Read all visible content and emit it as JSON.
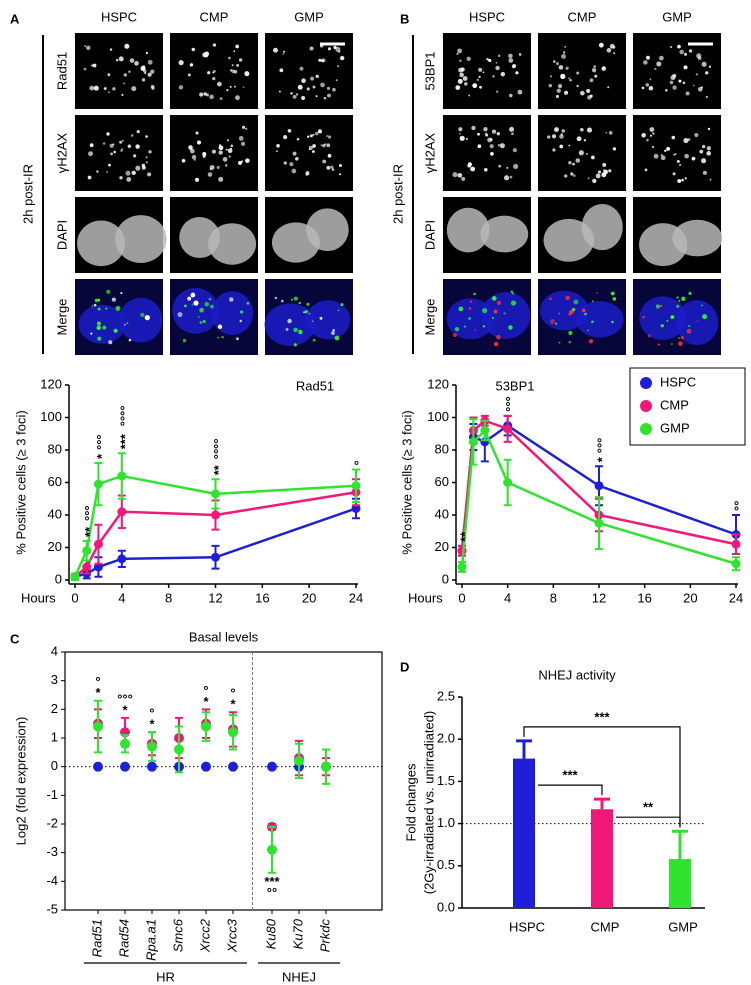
{
  "panels": {
    "A": {
      "label": "A",
      "columns": [
        "HSPC",
        "CMP",
        "GMP"
      ],
      "rows": [
        "Rad51",
        "γH2AX",
        "DAPI",
        "Merge"
      ],
      "side_label": "2h post-IR"
    },
    "B": {
      "label": "B",
      "columns": [
        "HSPC",
        "CMP",
        "GMP"
      ],
      "rows": [
        "53BP1",
        "γH2AX",
        "DAPI",
        "Merge"
      ],
      "side_label": "2h post-IR"
    },
    "C": {
      "label": "C"
    },
    "D": {
      "label": "D"
    }
  },
  "chart_data": [
    {
      "type": "line",
      "title": "Rad51",
      "y_label": "% Positive cells (≥ 3 foci)",
      "x_label": "Hours",
      "x": [
        0,
        1,
        2,
        4,
        12,
        24
      ],
      "xlim": [
        0,
        24
      ],
      "xticks": [
        0,
        4,
        8,
        12,
        16,
        20,
        24
      ],
      "ylim": [
        0,
        120
      ],
      "yticks": [
        0,
        20,
        40,
        60,
        80,
        100,
        120
      ],
      "series": [
        {
          "color": "#1f1fd8",
          "values": [
            2,
            4,
            8,
            13,
            14,
            44
          ],
          "errors": [
            2,
            3,
            6,
            5,
            7,
            6
          ]
        },
        {
          "color": "#f0197a",
          "values": [
            2,
            8,
            22,
            42,
            40,
            54
          ],
          "errors": [
            2,
            4,
            12,
            10,
            9,
            8
          ]
        },
        {
          "color": "#2fe32f",
          "values": [
            2,
            18,
            59,
            64,
            53,
            58
          ],
          "errors": [
            2,
            6,
            13,
            14,
            9,
            10
          ]
        }
      ],
      "annotations": [
        {
          "x": 1,
          "text": "**"
        },
        {
          "x": 1,
          "text": "°°°"
        },
        {
          "x": 2,
          "text": "*"
        },
        {
          "x": 2,
          "text": "°°°"
        },
        {
          "x": 4,
          "text": "***"
        },
        {
          "x": 4,
          "text": "°°°°"
        },
        {
          "x": 12,
          "text": "**"
        },
        {
          "x": 12,
          "text": "°°°°"
        },
        {
          "x": 24,
          "text": "°"
        }
      ]
    },
    {
      "type": "line",
      "title": "53BP1",
      "y_label": "% Positive cells (≥ 3 foci)",
      "x_label": "Hours",
      "x": [
        0,
        1,
        2,
        4,
        12,
        24
      ],
      "xlim": [
        0,
        24
      ],
      "xticks": [
        0,
        4,
        8,
        12,
        16,
        20,
        24
      ],
      "ylim": [
        0,
        120
      ],
      "yticks": [
        0,
        20,
        40,
        60,
        80,
        100,
        120
      ],
      "legend": "upper right",
      "series": [
        {
          "name": "HSPC",
          "color": "#1f1fd8",
          "values": [
            18,
            88,
            85,
            95,
            58,
            28
          ],
          "errors": [
            3,
            8,
            12,
            6,
            12,
            12
          ]
        },
        {
          "name": "CMP",
          "color": "#f0197a",
          "values": [
            18,
            92,
            98,
            93,
            40,
            22
          ],
          "errors": [
            3,
            8,
            3,
            8,
            10,
            6
          ]
        },
        {
          "name": "GMP",
          "color": "#2fe32f",
          "values": [
            8,
            85,
            92,
            60,
            35,
            10
          ],
          "errors": [
            3,
            14,
            6,
            14,
            16,
            4
          ]
        }
      ],
      "annotations": [
        {
          "x": 0,
          "text": "**"
        },
        {
          "x": 4,
          "text": "°°°"
        },
        {
          "x": 12,
          "text": "*"
        },
        {
          "x": 12,
          "text": "°°°"
        },
        {
          "x": 24,
          "text": "°°"
        }
      ]
    },
    {
      "type": "dot",
      "title": "Basal levels",
      "y_label": "Log2 (fold expression)",
      "categories": [
        "Rad51",
        "Rad54",
        "Rpa.a1",
        "Smc6",
        "Xrcc2",
        "Xrcc3",
        "Ku80",
        "Ku70",
        "Prkdc"
      ],
      "category_style": "italic",
      "groups": [
        {
          "label": "HR",
          "size": 6
        },
        {
          "label": "NHEJ",
          "size": 3
        }
      ],
      "ylim": [
        -5,
        4
      ],
      "yticks": [
        -5,
        -4,
        -3,
        -2,
        -1,
        0,
        1,
        2,
        3,
        4
      ],
      "reference_line": 0,
      "series": [
        {
          "color": "#1f1fd8",
          "values": [
            0,
            0,
            0,
            0,
            0,
            0,
            0,
            0,
            0
          ],
          "errors": [
            0,
            0,
            0,
            0,
            0,
            0,
            0,
            0,
            0
          ]
        },
        {
          "color": "#f0197a",
          "values": [
            1.5,
            1.2,
            0.8,
            1.0,
            1.5,
            1.3,
            -2.1,
            0.3,
            0.0
          ],
          "errors": [
            0.5,
            0.5,
            0.4,
            0.7,
            0.5,
            0.6,
            0.1,
            0.6,
            0.3
          ]
        },
        {
          "color": "#2fe32f",
          "values": [
            1.4,
            0.8,
            0.7,
            0.6,
            1.4,
            1.2,
            -2.9,
            0.2,
            0.0
          ],
          "errors": [
            0.9,
            0.3,
            0.5,
            0.8,
            0.5,
            0.6,
            0.8,
            0.6,
            0.6
          ]
        }
      ],
      "annotations": [
        {
          "at": 0,
          "text": "*"
        },
        {
          "at": 0,
          "text": "°"
        },
        {
          "at": 1,
          "text": "*"
        },
        {
          "at": 1,
          "text": "°°°"
        },
        {
          "at": 2,
          "text": "*"
        },
        {
          "at": 2,
          "text": "°"
        },
        {
          "at": 4,
          "text": "*"
        },
        {
          "at": 4,
          "text": "°"
        },
        {
          "at": 5,
          "text": "*"
        },
        {
          "at": 5,
          "text": "°"
        },
        {
          "at": 6,
          "text": "***",
          "position": "below"
        },
        {
          "at": 6,
          "text": "°°",
          "position": "below"
        }
      ]
    },
    {
      "type": "bar",
      "title": "NHEJ activity",
      "y_label": [
        "Fold changes",
        "(2Gy-irradiated vs. unirradiated)"
      ],
      "categories": [
        "HSPC",
        "CMP",
        "GMP"
      ],
      "values": [
        1.77,
        1.17,
        0.58
      ],
      "errors": [
        0.21,
        0.12,
        0.33
      ],
      "colors": [
        "#1f1fd8",
        "#f0197a",
        "#2fe32f"
      ],
      "ylim": [
        0,
        2.5
      ],
      "yticks": [
        {
          "value": 0,
          "label": "0.0"
        },
        0.5,
        {
          "value": 1,
          "label": "1.0"
        },
        1.5,
        {
          "value": 2,
          "label": "2.0"
        },
        2.5
      ],
      "reference_line": 1,
      "comparisons": [
        {
          "from": 0,
          "to": 1,
          "label": "***"
        },
        {
          "from": 0,
          "to": 2,
          "label": "***"
        },
        {
          "from": 1,
          "to": 2,
          "label": "**"
        }
      ]
    }
  ]
}
